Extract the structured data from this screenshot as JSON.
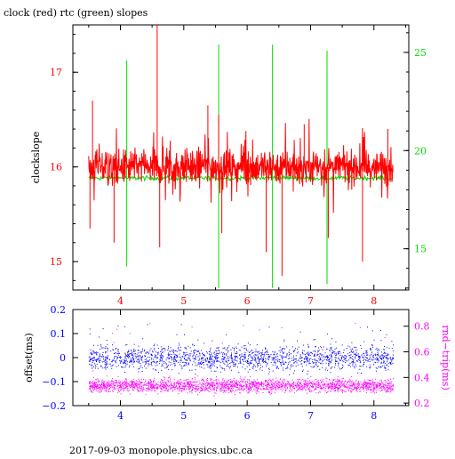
{
  "title": "clock (red) rtc (green) slopes",
  "footer": "2017-09-03  monopole.physics.ubc.ca",
  "colors": {
    "clock": "#ff0000",
    "rtc": "#00dd00",
    "offset": "#0000ff",
    "rndtrip": "#ff00ff",
    "axis_black": "#000000"
  },
  "chart_data": [
    {
      "type": "line",
      "title": "clock (red) rtc (green) slopes",
      "ylabel": "clockslope",
      "y2label": "",
      "x_ticks": [
        "4",
        "5",
        "6",
        "7",
        "8"
      ],
      "y_ticks": [
        "15",
        "16",
        "17"
      ],
      "y2_ticks": [
        "15",
        "20",
        "25"
      ],
      "xlim": [
        3.25,
        8.55
      ],
      "ylim": [
        14.7,
        17.5
      ],
      "y2lim": [
        12.9,
        26.4
      ],
      "grid": false,
      "series": [
        {
          "key": "clock",
          "x_range": [
            3.5,
            8.3
          ],
          "baseline": 16.0,
          "noise": 0.12,
          "spikes": [
            {
              "x": 3.52,
              "y": 15.35
            },
            {
              "x": 3.56,
              "y": 16.7
            },
            {
              "x": 3.9,
              "y": 15.2
            },
            {
              "x": 4.58,
              "y": 17.5
            },
            {
              "x": 4.62,
              "y": 15.15
            },
            {
              "x": 5.38,
              "y": 16.65
            },
            {
              "x": 5.55,
              "y": 16.55
            },
            {
              "x": 5.6,
              "y": 15.3
            },
            {
              "x": 6.3,
              "y": 15.1
            },
            {
              "x": 6.55,
              "y": 14.85
            },
            {
              "x": 6.9,
              "y": 16.45
            },
            {
              "x": 7.28,
              "y": 15.25
            },
            {
              "x": 7.82,
              "y": 15.0
            },
            {
              "x": 8.22,
              "y": 16.4
            }
          ]
        },
        {
          "key": "rtc",
          "axis": "right",
          "x_range": [
            3.5,
            8.3
          ],
          "baseline": 18.6,
          "spikes": [
            {
              "x": 4.1,
              "high": 24.6,
              "low": 14.1
            },
            {
              "x": 5.55,
              "high": 25.4,
              "low": 13.0
            },
            {
              "x": 6.4,
              "high": 25.4,
              "low": 13.0
            },
            {
              "x": 7.26,
              "high": 25.1,
              "low": 13.2
            }
          ]
        }
      ]
    },
    {
      "type": "scatter",
      "ylabel": "offset(ms)",
      "y2label": "rnd−trip(ms)",
      "x_ticks": [
        "4",
        "5",
        "6",
        "7",
        "8"
      ],
      "y_ticks": [
        "0.2",
        "0.1",
        "0",
        "−0.1",
        "−0.2"
      ],
      "y2_ticks": [
        "0.8",
        "0.6",
        "0.4",
        "0.2"
      ],
      "xlim": [
        3.25,
        8.55
      ],
      "ylim": [
        -0.2,
        0.2
      ],
      "y2lim": [
        0.18,
        0.93
      ],
      "grid": false,
      "series": [
        {
          "key": "offset",
          "x_range": [
            3.5,
            8.3
          ],
          "center": 0.0,
          "spread": 0.035
        },
        {
          "key": "rndtrip",
          "axis": "right",
          "x_range": [
            3.5,
            8.3
          ],
          "center": 0.34,
          "spread": 0.035
        }
      ]
    }
  ]
}
